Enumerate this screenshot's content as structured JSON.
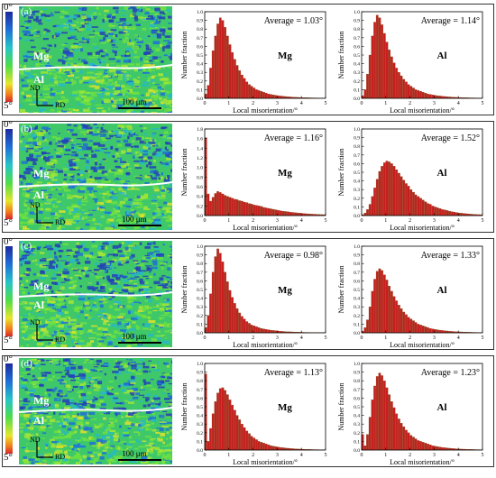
{
  "colorbar": {
    "top_label": "0°",
    "bottom_label": "5°"
  },
  "map_labels": {
    "mg": "Mg",
    "al": "Al",
    "nd": "ND",
    "rd": "RD",
    "scale": "100 μm"
  },
  "axes": {
    "xlabel": "Local misorientation/°",
    "ylabel": "Number fraction"
  },
  "chart_data": [
    {
      "panel": "(a)",
      "phase": "Mg",
      "type": "bar",
      "annotation": "Average = 1.03°",
      "xlim": [
        0,
        5
      ],
      "ylim": [
        0,
        1.0
      ],
      "xticks": [
        "0",
        "1",
        "2",
        "3",
        "4",
        "5"
      ],
      "yticks": [
        "0.0",
        "0.1",
        "0.2",
        "0.3",
        "0.4",
        "0.5",
        "0.6",
        "0.7",
        "0.8",
        "0.9",
        "1.0"
      ],
      "bin_width": 0.1,
      "values": [
        0.05,
        0.15,
        0.35,
        0.55,
        0.72,
        0.86,
        0.93,
        0.9,
        0.82,
        0.72,
        0.62,
        0.53,
        0.45,
        0.38,
        0.32,
        0.27,
        0.23,
        0.19,
        0.16,
        0.14,
        0.12,
        0.1,
        0.09,
        0.08,
        0.07,
        0.06,
        0.05,
        0.045,
        0.04,
        0.035,
        0.03,
        0.027,
        0.024,
        0.021,
        0.018,
        0.016,
        0.014,
        0.012,
        0.011,
        0.01,
        0.009,
        0.008,
        0.007,
        0.006,
        0.005,
        0.005,
        0.004,
        0.004,
        0.003,
        0.003
      ]
    },
    {
      "panel": "(a)",
      "phase": "Al",
      "type": "bar",
      "annotation": "Average = 1.14°",
      "xlim": [
        0,
        5
      ],
      "ylim": [
        0,
        1.0
      ],
      "xticks": [
        "0",
        "1",
        "2",
        "3",
        "4",
        "5"
      ],
      "yticks": [
        "0.0",
        "0.1",
        "0.2",
        "0.3",
        "0.4",
        "0.5",
        "0.6",
        "0.7",
        "0.8",
        "0.9",
        "1.0"
      ],
      "bin_width": 0.1,
      "values": [
        0.03,
        0.1,
        0.28,
        0.5,
        0.72,
        0.88,
        0.96,
        0.93,
        0.85,
        0.75,
        0.65,
        0.56,
        0.48,
        0.41,
        0.35,
        0.3,
        0.26,
        0.22,
        0.19,
        0.16,
        0.14,
        0.12,
        0.1,
        0.09,
        0.08,
        0.07,
        0.06,
        0.05,
        0.045,
        0.04,
        0.035,
        0.03,
        0.027,
        0.024,
        0.021,
        0.018,
        0.016,
        0.014,
        0.012,
        0.011,
        0.01,
        0.009,
        0.008,
        0.007,
        0.006,
        0.005,
        0.005,
        0.004,
        0.004,
        0.003
      ]
    },
    {
      "panel": "(b)",
      "phase": "Mg",
      "type": "bar",
      "annotation": "Average = 1.16°",
      "xlim": [
        0,
        5
      ],
      "ylim": [
        0,
        1.8
      ],
      "xticks": [
        "0",
        "1",
        "2",
        "3",
        "4",
        "5"
      ],
      "yticks": [
        "0.0",
        "0.2",
        "0.4",
        "0.6",
        "0.8",
        "1.0",
        "1.2",
        "1.4",
        "1.6",
        "1.8"
      ],
      "bin_width": 0.1,
      "values": [
        1.62,
        0.45,
        0.3,
        0.38,
        0.46,
        0.5,
        0.48,
        0.45,
        0.42,
        0.4,
        0.38,
        0.36,
        0.34,
        0.33,
        0.31,
        0.3,
        0.28,
        0.27,
        0.25,
        0.24,
        0.22,
        0.21,
        0.2,
        0.19,
        0.17,
        0.16,
        0.15,
        0.14,
        0.13,
        0.12,
        0.11,
        0.1,
        0.09,
        0.085,
        0.08,
        0.07,
        0.065,
        0.06,
        0.055,
        0.05,
        0.045,
        0.04,
        0.037,
        0.034,
        0.03,
        0.028,
        0.025,
        0.022,
        0.02,
        0.018
      ]
    },
    {
      "panel": "(b)",
      "phase": "Al",
      "type": "bar",
      "annotation": "Average = 1.52°",
      "xlim": [
        0,
        5
      ],
      "ylim": [
        0,
        1.0
      ],
      "xticks": [
        "0",
        "1",
        "2",
        "3",
        "4",
        "5"
      ],
      "yticks": [
        "0.0",
        "0.1",
        "0.2",
        "0.3",
        "0.4",
        "0.5",
        "0.6",
        "0.7",
        "0.8",
        "0.9",
        "1.0"
      ],
      "bin_width": 0.1,
      "values": [
        0.01,
        0.03,
        0.07,
        0.13,
        0.22,
        0.32,
        0.42,
        0.51,
        0.57,
        0.61,
        0.63,
        0.62,
        0.6,
        0.57,
        0.53,
        0.49,
        0.45,
        0.41,
        0.37,
        0.34,
        0.3,
        0.27,
        0.24,
        0.22,
        0.2,
        0.18,
        0.16,
        0.14,
        0.13,
        0.11,
        0.1,
        0.09,
        0.08,
        0.07,
        0.065,
        0.058,
        0.05,
        0.045,
        0.04,
        0.035,
        0.03,
        0.027,
        0.024,
        0.021,
        0.018,
        0.016,
        0.014,
        0.012,
        0.011,
        0.01
      ]
    },
    {
      "panel": "(c)",
      "phase": "Mg",
      "type": "bar",
      "annotation": "Average = 0.98°",
      "xlim": [
        0,
        5
      ],
      "ylim": [
        0,
        1.0
      ],
      "xticks": [
        "0",
        "1",
        "2",
        "3",
        "4",
        "5"
      ],
      "yticks": [
        "0.0",
        "0.1",
        "0.2",
        "0.3",
        "0.4",
        "0.5",
        "0.6",
        "0.7",
        "0.8",
        "0.9",
        "1.0"
      ],
      "bin_width": 0.1,
      "values": [
        0.06,
        0.2,
        0.45,
        0.7,
        0.88,
        0.97,
        0.92,
        0.82,
        0.7,
        0.59,
        0.49,
        0.41,
        0.34,
        0.28,
        0.23,
        0.19,
        0.16,
        0.13,
        0.11,
        0.09,
        0.08,
        0.07,
        0.06,
        0.05,
        0.045,
        0.04,
        0.035,
        0.03,
        0.027,
        0.024,
        0.021,
        0.018,
        0.016,
        0.014,
        0.012,
        0.011,
        0.01,
        0.009,
        0.008,
        0.007,
        0.006,
        0.005,
        0.005,
        0.004,
        0.004,
        0.003,
        0.003,
        0.003,
        0.002,
        0.002
      ]
    },
    {
      "panel": "(c)",
      "phase": "Al",
      "type": "bar",
      "annotation": "Average = 1.33°",
      "xlim": [
        0,
        5
      ],
      "ylim": [
        0,
        1.0
      ],
      "xticks": [
        "0",
        "1",
        "2",
        "3",
        "4",
        "5"
      ],
      "yticks": [
        "0.0",
        "0.1",
        "0.2",
        "0.3",
        "0.4",
        "0.5",
        "0.6",
        "0.7",
        "0.8",
        "0.9",
        "1.0"
      ],
      "bin_width": 0.1,
      "values": [
        0.02,
        0.06,
        0.15,
        0.3,
        0.48,
        0.62,
        0.71,
        0.74,
        0.72,
        0.67,
        0.61,
        0.54,
        0.48,
        0.42,
        0.37,
        0.32,
        0.28,
        0.24,
        0.21,
        0.18,
        0.16,
        0.14,
        0.12,
        0.1,
        0.09,
        0.08,
        0.07,
        0.06,
        0.05,
        0.045,
        0.04,
        0.035,
        0.03,
        0.027,
        0.024,
        0.021,
        0.018,
        0.016,
        0.014,
        0.012,
        0.011,
        0.01,
        0.009,
        0.008,
        0.007,
        0.006,
        0.005,
        0.005,
        0.004,
        0.004
      ]
    },
    {
      "panel": "(d)",
      "phase": "Mg",
      "type": "bar",
      "annotation": "Average = 1.13°",
      "xlim": [
        0,
        5
      ],
      "ylim": [
        0,
        1.0
      ],
      "xticks": [
        "0",
        "1",
        "2",
        "3",
        "4",
        "5"
      ],
      "yticks": [
        "0.0",
        "0.1",
        "0.2",
        "0.3",
        "0.4",
        "0.5",
        "0.6",
        "0.7",
        "0.8",
        "0.9",
        "1.0"
      ],
      "bin_width": 0.1,
      "values": [
        0.88,
        0.1,
        0.25,
        0.42,
        0.56,
        0.66,
        0.71,
        0.72,
        0.69,
        0.64,
        0.58,
        0.52,
        0.46,
        0.4,
        0.35,
        0.3,
        0.26,
        0.22,
        0.19,
        0.16,
        0.14,
        0.12,
        0.1,
        0.09,
        0.08,
        0.07,
        0.06,
        0.05,
        0.045,
        0.04,
        0.035,
        0.03,
        0.027,
        0.024,
        0.021,
        0.018,
        0.016,
        0.014,
        0.012,
        0.011,
        0.01,
        0.009,
        0.008,
        0.007,
        0.006,
        0.005,
        0.005,
        0.004,
        0.004,
        0.003
      ]
    },
    {
      "panel": "(d)",
      "phase": "Al",
      "type": "bar",
      "annotation": "Average = 1.23°",
      "xlim": [
        0,
        5
      ],
      "ylim": [
        0,
        1.0
      ],
      "xticks": [
        "0",
        "1",
        "2",
        "3",
        "4",
        "5"
      ],
      "yticks": [
        "0.0",
        "0.1",
        "0.2",
        "0.3",
        "0.4",
        "0.5",
        "0.6",
        "0.7",
        "0.8",
        "0.9",
        "1.0"
      ],
      "bin_width": 0.1,
      "values": [
        0.18,
        0.05,
        0.18,
        0.38,
        0.58,
        0.74,
        0.85,
        0.89,
        0.86,
        0.8,
        0.72,
        0.64,
        0.56,
        0.49,
        0.42,
        0.36,
        0.31,
        0.27,
        0.23,
        0.2,
        0.17,
        0.15,
        0.13,
        0.11,
        0.1,
        0.09,
        0.08,
        0.07,
        0.06,
        0.05,
        0.045,
        0.04,
        0.035,
        0.03,
        0.027,
        0.024,
        0.021,
        0.018,
        0.016,
        0.014,
        0.012,
        0.011,
        0.01,
        0.009,
        0.008,
        0.007,
        0.006,
        0.005,
        0.005,
        0.004
      ]
    }
  ]
}
